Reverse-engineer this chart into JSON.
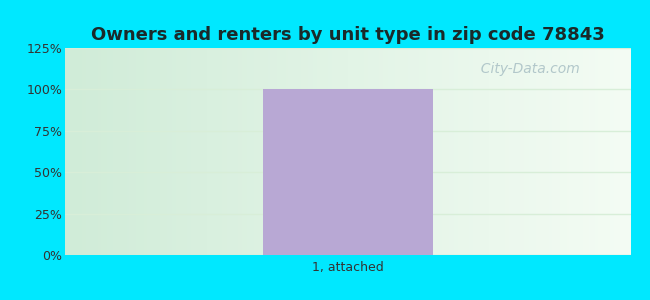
{
  "title": "Owners and renters by unit type in zip code 78843",
  "categories": [
    "1, attached"
  ],
  "values": [
    100
  ],
  "bar_color": "#b8a8d4",
  "bar_width": 0.45,
  "ylim": [
    0,
    125
  ],
  "yticks": [
    0,
    25,
    50,
    75,
    100,
    125
  ],
  "ytick_labels": [
    "0%",
    "25%",
    "50%",
    "75%",
    "100%",
    "125%"
  ],
  "title_fontsize": 13,
  "tick_fontsize": 9,
  "xlabel_fontsize": 9,
  "bg_outer_color": "#00e8ff",
  "watermark": "  City-Data.com",
  "watermark_color": "#a8bfc4",
  "watermark_fontsize": 10,
  "grid_color": "#d8eed8",
  "title_color": "#1a2a2a"
}
